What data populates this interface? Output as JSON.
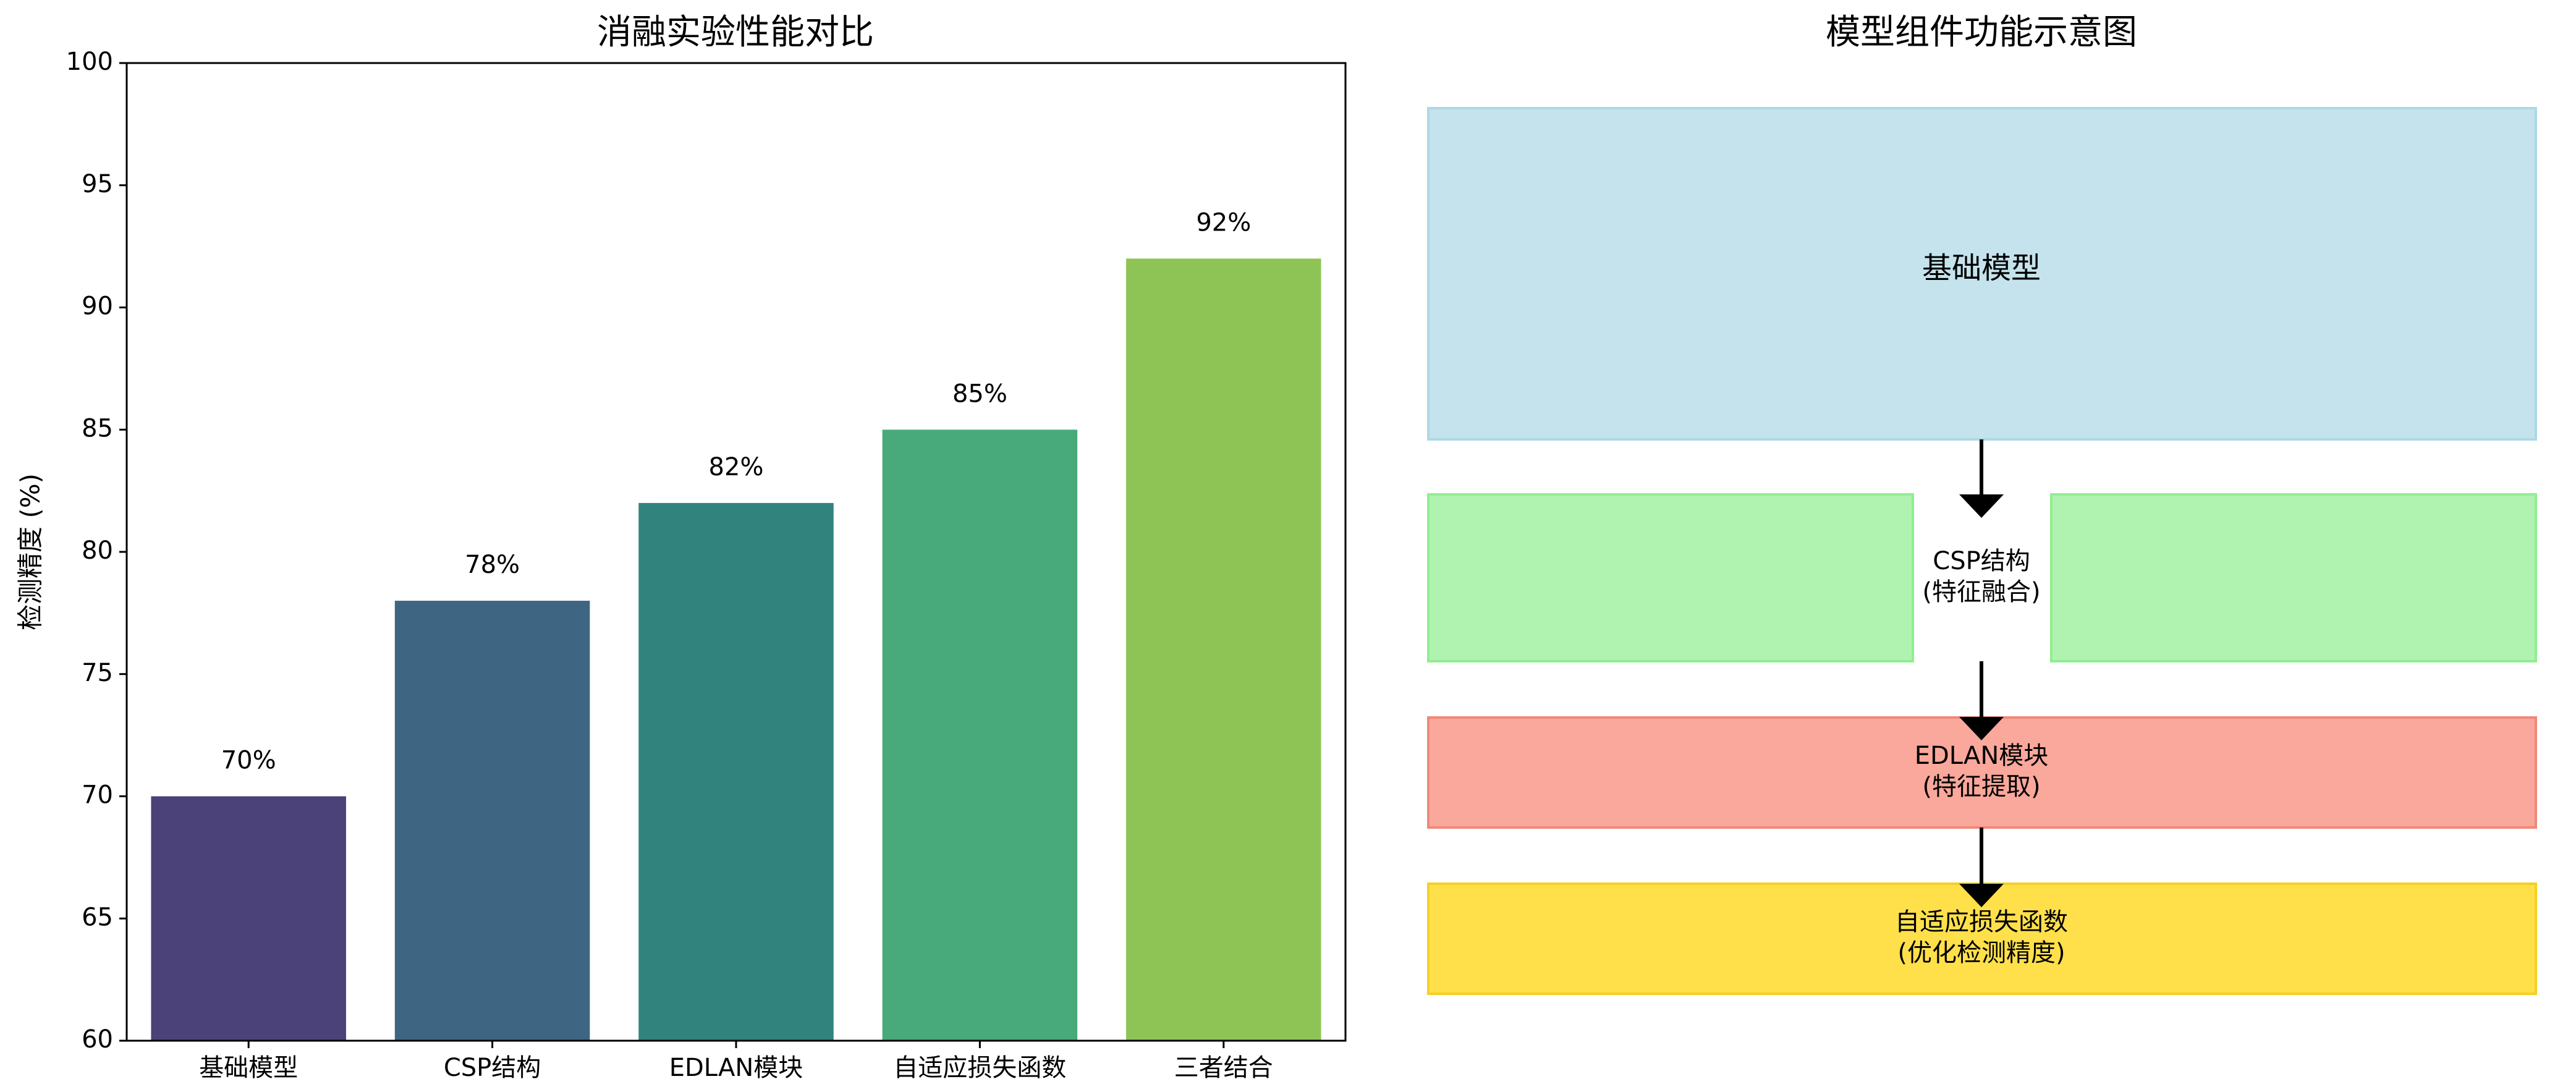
{
  "chart_data": {
    "type": "bar",
    "title": "消融实验性能对比",
    "y_label": "检测精度 (%)",
    "categories": [
      "基础模型",
      "CSP结构",
      "EDLAN模块",
      "自适应损失函数",
      "三者结合"
    ],
    "values": [
      70,
      78,
      82,
      85,
      92
    ],
    "value_labels": [
      "70%",
      "78%",
      "82%",
      "85%",
      "92%"
    ],
    "colors": [
      "#4b4279",
      "#3e6683",
      "#31847e",
      "#48aa7a",
      "#8ec456"
    ],
    "ylim": [
      60,
      100
    ],
    "yticks": [
      60,
      65,
      70,
      75,
      80,
      85,
      90,
      95,
      100
    ],
    "grid": false
  },
  "diagram": {
    "title": "模型组件功能示意图",
    "nodes": [
      {
        "label": [
          "基础模型"
        ]
      },
      {
        "label": [
          "CSP结构",
          "(特征融合)"
        ]
      },
      {
        "label": [
          "EDLAN模块",
          "(特征提取)"
        ]
      },
      {
        "label": [
          "自适应损失函数",
          "(优化检测精度)"
        ]
      }
    ]
  }
}
